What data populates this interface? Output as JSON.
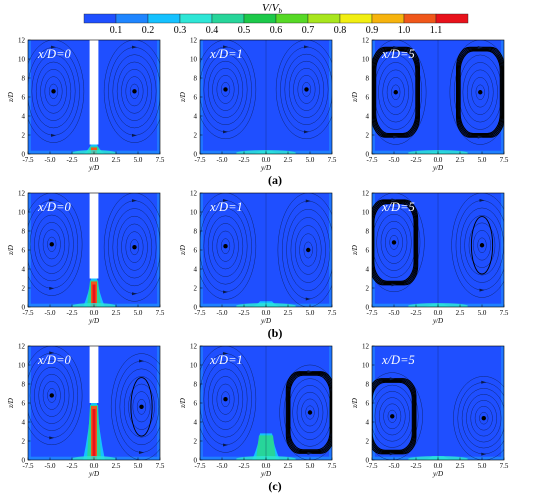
{
  "colorbar": {
    "title_main": "V",
    "title_sep": "/",
    "title_v": "V",
    "title_sub": "b",
    "ticks": [
      "0.1",
      "0.2",
      "0.3",
      "0.4",
      "0.5",
      "0.6",
      "0.7",
      "0.8",
      "0.9",
      "1.0",
      "1.1"
    ],
    "colors": [
      "#1f4fff",
      "#1f85ff",
      "#15c1ff",
      "#2ee6d6",
      "#27d59a",
      "#1cc94a",
      "#56d926",
      "#a8e61d",
      "#f1ee12",
      "#f6b30d",
      "#f0571a",
      "#e8121b"
    ]
  },
  "chart_data": {
    "type": "heatmap",
    "xlabel": "y/D",
    "ylabel": "z/D",
    "xticks": [
      "-7.5",
      "-5.0",
      "-2.5",
      "0.0",
      "2.5",
      "5.0",
      "7.5"
    ],
    "yticks": [
      "0",
      "2",
      "4",
      "6",
      "8",
      "10",
      "12"
    ],
    "xlim": [
      -7.5,
      7.5
    ],
    "ylim": [
      0,
      12
    ],
    "colorbar_range": [
      0,
      1.2
    ],
    "rows": [
      {
        "label": "(a)",
        "panels": [
          {
            "section": "x/D=0",
            "label_pre": "x",
            "label_post": "/D=0",
            "wall": true,
            "jet_height": 1.0,
            "jet_peak": 1.15,
            "vortices": [
              {
                "y": -4.6,
                "z": 6.6,
                "strength": 0.2
              },
              {
                "y": 4.6,
                "z": 6.6,
                "strength": 0.2
              }
            ]
          },
          {
            "section": "x/D=1",
            "label_pre": "x",
            "label_post": "/D=1",
            "wall": false,
            "jet_height": 0.3,
            "jet_peak": 0.3,
            "vortices": [
              {
                "y": -4.6,
                "z": 6.8,
                "strength": 0.2
              },
              {
                "y": 4.6,
                "z": 6.8,
                "strength": 0.2
              }
            ]
          },
          {
            "section": "x/D=5",
            "label_pre": "x",
            "label_post": "/D=5",
            "wall": false,
            "jet_height": 0.2,
            "jet_peak": 0.2,
            "vortices": [
              {
                "y": -4.8,
                "z": 6.5,
                "strength": 1.0
              },
              {
                "y": 4.8,
                "z": 6.5,
                "strength": 1.0
              }
            ]
          }
        ]
      },
      {
        "label": "(b)",
        "panels": [
          {
            "section": "x/D=0",
            "label_pre": "x",
            "label_post": "/D=0",
            "wall": true,
            "jet_height": 3.0,
            "jet_peak": 1.15,
            "vortices": [
              {
                "y": -4.8,
                "z": 6.6,
                "strength": 0.2
              },
              {
                "y": 4.6,
                "z": 6.3,
                "strength": 0.2
              }
            ]
          },
          {
            "section": "x/D=1",
            "label_pre": "x",
            "label_post": "/D=1",
            "wall": false,
            "jet_height": 0.6,
            "jet_peak": 0.3,
            "vortices": [
              {
                "y": -4.6,
                "z": 6.4,
                "strength": 0.2
              },
              {
                "y": 4.8,
                "z": 6.0,
                "strength": 0.2
              }
            ]
          },
          {
            "section": "x/D=5",
            "label_pre": "x",
            "label_post": "/D=5",
            "wall": false,
            "jet_height": 0.3,
            "jet_peak": 0.2,
            "vortices": [
              {
                "y": -5.0,
                "z": 6.8,
                "strength": 1.0
              },
              {
                "y": 5.0,
                "z": 6.5,
                "strength": 0.3
              }
            ]
          }
        ]
      },
      {
        "label": "(c)",
        "panels": [
          {
            "section": "x/D=0",
            "label_pre": "x",
            "label_post": "/D=0",
            "wall": true,
            "jet_height": 6.0,
            "jet_peak": 1.15,
            "vortices": [
              {
                "y": -4.8,
                "z": 6.8,
                "strength": 0.2
              },
              {
                "y": 5.4,
                "z": 5.6,
                "strength": 0.3
              }
            ]
          },
          {
            "section": "x/D=1",
            "label_pre": "x",
            "label_post": "/D=1",
            "wall": false,
            "jet_height": 2.8,
            "jet_peak": 0.5,
            "vortices": [
              {
                "y": -4.6,
                "z": 6.4,
                "strength": 0.2
              },
              {
                "y": 5.0,
                "z": 5.0,
                "strength": 1.0
              }
            ]
          },
          {
            "section": "x/D=5",
            "label_pre": "x",
            "label_post": "/D=5",
            "wall": false,
            "jet_height": 0.4,
            "jet_peak": 0.2,
            "vortices": [
              {
                "y": -5.2,
                "z": 4.6,
                "strength": 1.0
              },
              {
                "y": 5.2,
                "z": 4.4,
                "strength": 0.2
              }
            ]
          }
        ]
      }
    ]
  }
}
